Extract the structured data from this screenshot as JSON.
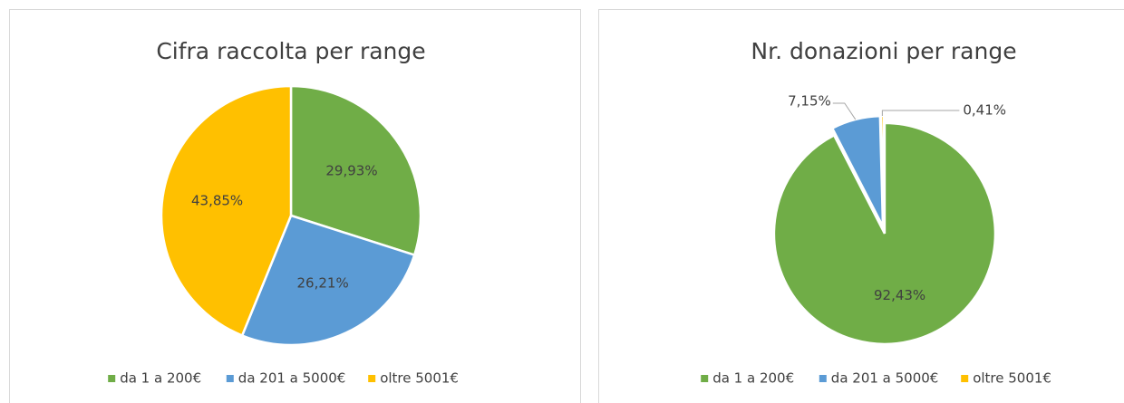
{
  "chart_data": [
    {
      "type": "pie",
      "title": "Cifra raccolta per range",
      "categories": [
        "da 1 a 200€",
        "da 201 a 5000€",
        "oltre 5001€"
      ],
      "values": [
        29.93,
        26.21,
        43.85
      ],
      "value_labels": [
        "29,93%",
        "26,21%",
        "43,85%"
      ],
      "colors": [
        "#70ad47",
        "#5b9bd5",
        "#ffc000"
      ]
    },
    {
      "type": "pie",
      "title": "Nr. donazioni per range",
      "categories": [
        "da 1 a 200€",
        "da 201 a 5000€",
        "oltre 5001€"
      ],
      "values": [
        92.43,
        7.15,
        0.41
      ],
      "value_labels": [
        "92,43%",
        "7,15%",
        "0,41%"
      ],
      "colors": [
        "#70ad47",
        "#5b9bd5",
        "#ffc000"
      ]
    }
  ]
}
